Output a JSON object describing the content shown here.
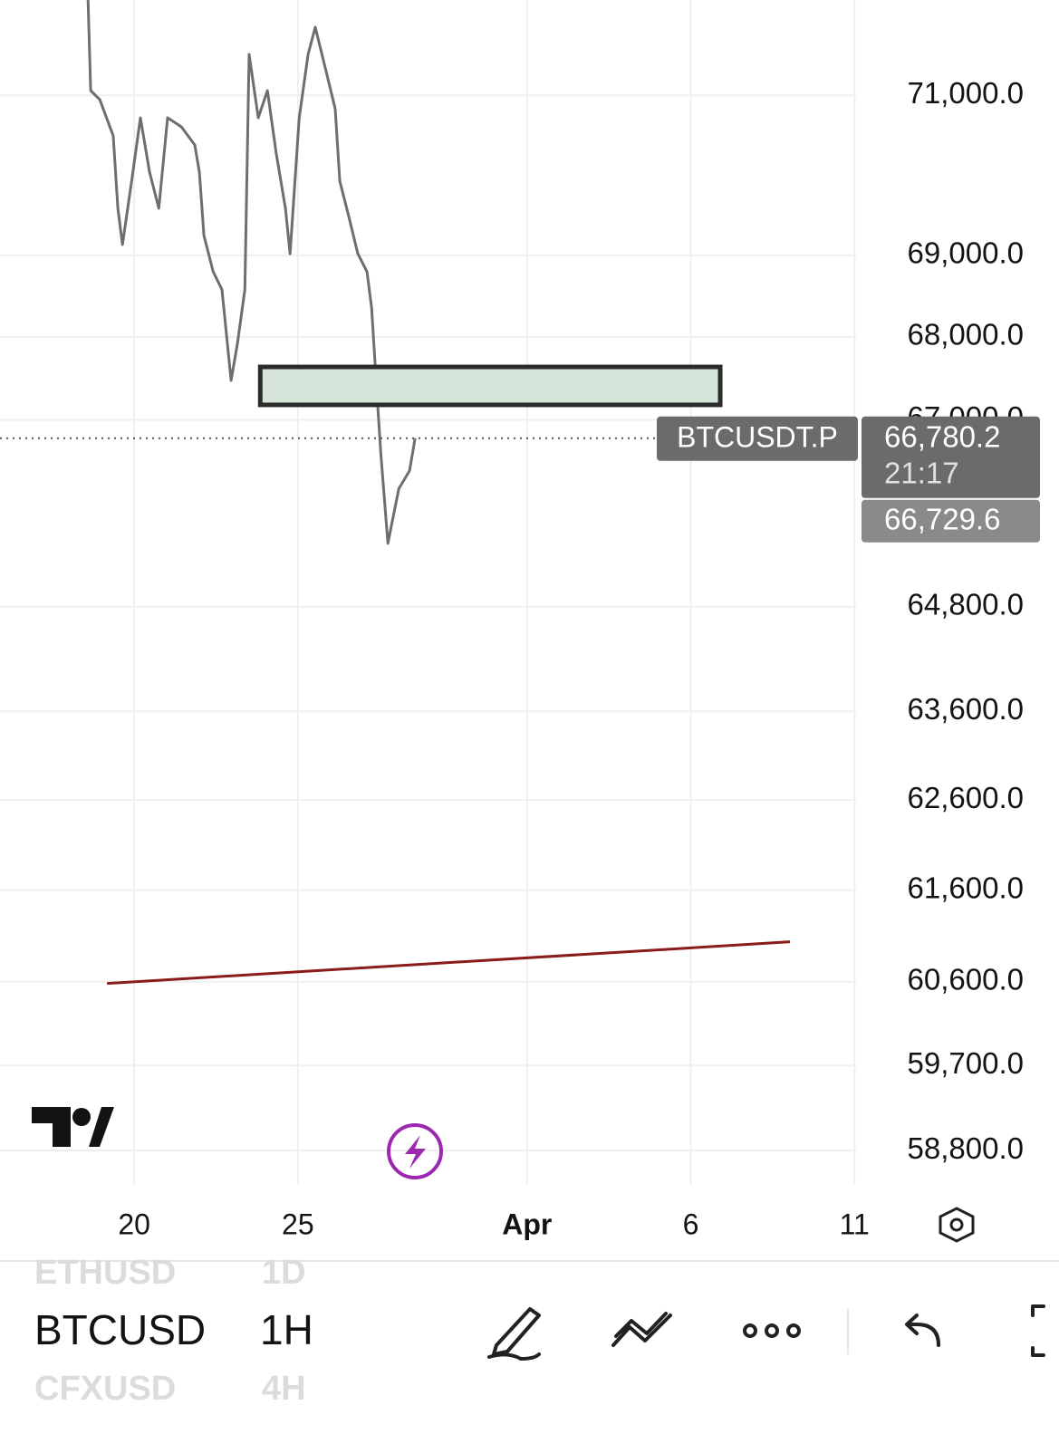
{
  "chart_data": {
    "type": "line",
    "log_scale": true,
    "grid": true,
    "series": [
      {
        "name": "BTCUSDT.P",
        "color": "#6e6e6e",
        "x": [
          18.59,
          18.67,
          18.95,
          19.36,
          19.5,
          19.64,
          19.92,
          20.19,
          20.47,
          20.75,
          21.02,
          21.44,
          21.85,
          21.99,
          22.13,
          22.41,
          22.68,
          22.96,
          23.15,
          23.38,
          23.51,
          23.79,
          24.07,
          24.34,
          24.62,
          24.76,
          25.04,
          25.31,
          25.53,
          25.87,
          26.14,
          26.28,
          26.56,
          26.83,
          27.11,
          27.25,
          27.39,
          27.53,
          27.75,
          28.08,
          28.41,
          28.58
        ],
        "values": [
          72220,
          71061,
          70946,
          70488,
          69581,
          69132,
          69920,
          70716,
          70033,
          69581,
          70716,
          70602,
          70374,
          70033,
          69244,
          68798,
          68578,
          67474,
          67913,
          68578,
          71522,
          70716,
          71061,
          70261,
          69581,
          69019,
          70716,
          71522,
          71870,
          71291,
          70831,
          69920,
          69470,
          69019,
          68798,
          68357,
          67474,
          66609,
          65538,
          66180,
          66394,
          66780.2
        ]
      }
    ],
    "ylim": [
      58440,
      72220
    ],
    "yticks": [
      {
        "value": 71000,
        "label": "71,000.0"
      },
      {
        "value": 69000,
        "label": "69,000.0"
      },
      {
        "value": 68000,
        "label": "68,000.0"
      },
      {
        "value": 67000,
        "label": "67,000.0"
      },
      {
        "value": 64800,
        "label": "64,800.0"
      },
      {
        "value": 63600,
        "label": "63,600.0"
      },
      {
        "value": 62600,
        "label": "62,600.0"
      },
      {
        "value": 61600,
        "label": "61,600.0"
      },
      {
        "value": 60600,
        "label": "60,600.0"
      },
      {
        "value": 59700,
        "label": "59,700.0"
      },
      {
        "value": 58800,
        "label": "58,800.0"
      }
    ],
    "xlim": [
      15.9,
      42.05
    ],
    "xticks": [
      20,
      25,
      {
        "value": 32,
        "label": "Apr"
      },
      {
        "value": 37,
        "label": "6"
      },
      {
        "value": 42,
        "label": "11"
      }
    ],
    "last_price": {
      "value": 66780.2,
      "label": "66,780.2"
    },
    "countdown": "21:17",
    "second_price": {
      "value": 66729.6,
      "label": "66,729.6"
    },
    "drawings": [
      {
        "type": "rectangle",
        "color": "#d5e4d8",
        "x": [
          23.85,
          37.9
        ],
        "y": [
          67180,
          67637
        ]
      },
      {
        "type": "trendline",
        "color": "#8b1a1a",
        "x": [
          19.17,
          40.03
        ],
        "y": [
          60582,
          61034
        ]
      }
    ]
  },
  "toolbar": {
    "symbols": [
      "ETHUSD",
      "BTCUSD",
      "CFXUSD"
    ],
    "intervals": [
      "1D",
      "1H",
      "4H"
    ]
  }
}
